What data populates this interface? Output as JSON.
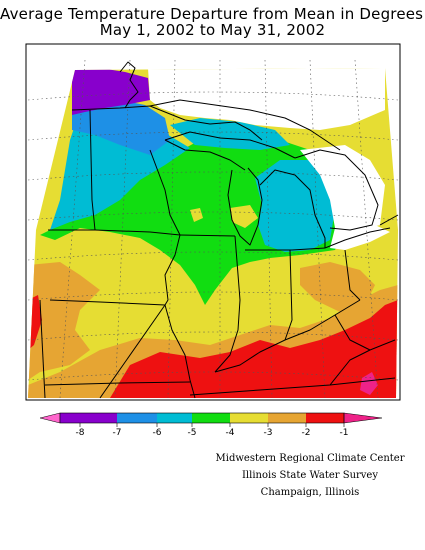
{
  "title": {
    "line1": "Average Temperature Departure from Mean in Degrees F",
    "line2": "May 1, 2002 to May 31, 2002"
  },
  "legend": {
    "labels": [
      "-8",
      "-7",
      "-6",
      "-5",
      "-4",
      "-3",
      "-2",
      "-1"
    ],
    "colors": {
      "below_-8": "#ff66cc",
      "-8_to_-7": "#8800cc",
      "-7_to_-6": "#1e90e6",
      "-6_to_-5": "#00bcd4",
      "-5_to_-4": "#11dd11",
      "-4_to_-3": "#e6dd33",
      "-3_to_-2": "#e6a533",
      "-2_to_-1": "#ee1111",
      "above_-1": "#ee2288"
    }
  },
  "credits": {
    "line1": "Midwestern Regional Climate Center",
    "line2": "Illinois State Water Survey",
    "line3": "Champaign, Illinois"
  }
}
